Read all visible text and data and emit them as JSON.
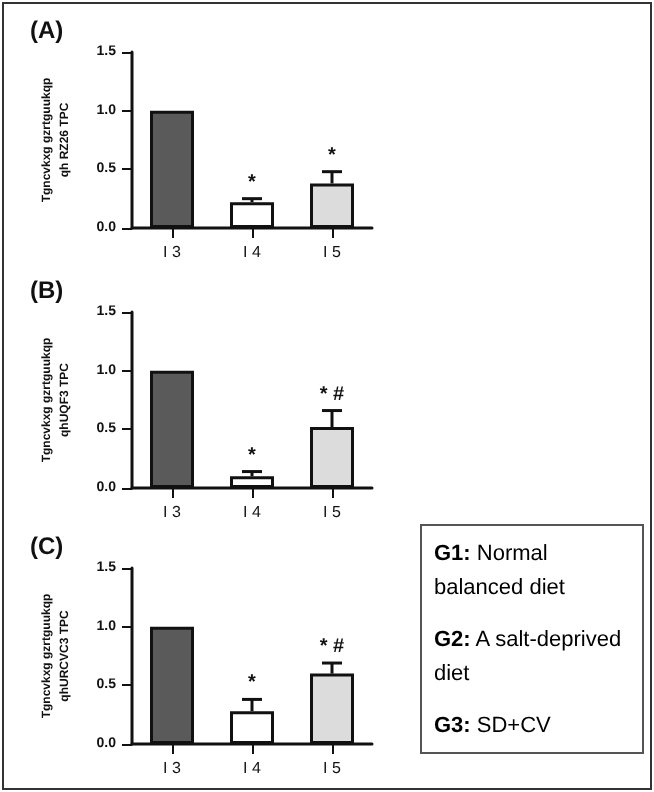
{
  "chart_data": [
    {
      "type": "bar",
      "title": "(A)",
      "ylabel": "Tgncvkxg gzrtguukqp qh RZ26 TPC",
      "categories": [
        "I 3",
        "I 4",
        "I 5"
      ],
      "values": [
        1.0,
        0.22,
        0.38
      ],
      "colors": [
        "#5a5a5a",
        "#ffffff",
        "#dcdcdc"
      ],
      "errors": [
        null,
        [
          0.22,
          0.25
        ],
        [
          0.38,
          0.48
        ]
      ],
      "ylim": [
        0,
        1.5
      ],
      "yticks": [
        {
          "value": 0,
          "label": "0.0"
        },
        {
          "value": 0.5,
          "label": "0.5"
        },
        {
          "value": 1,
          "label": "1.0"
        },
        {
          "value": 1.5,
          "label": "1.5"
        }
      ],
      "grid": false,
      "annotations": [
        "*",
        "*"
      ]
    },
    {
      "type": "bar",
      "title": "(B)",
      "ylabel": "Tgncvkxg gzrtguukqp qhUQF3 TPC",
      "categories": [
        "I 3",
        "I 4",
        "I 5"
      ],
      "values": [
        1.0,
        0.1,
        0.52
      ],
      "colors": [
        "#5a5a5a",
        "#ffffff",
        "#dcdcdc"
      ],
      "errors": [
        null,
        [
          0.1,
          0.14
        ],
        [
          0.52,
          0.66
        ]
      ],
      "ylim": [
        0,
        1.5
      ],
      "yticks": [
        {
          "value": 0,
          "label": "0.0"
        },
        {
          "value": 0.5,
          "label": "0.5"
        },
        {
          "value": 1,
          "label": "1.0"
        },
        {
          "value": 1.5,
          "label": "1.5"
        }
      ],
      "grid": false,
      "annotations": [
        "*",
        "* #"
      ]
    },
    {
      "type": "bar",
      "title": "(C)",
      "ylabel": "Tgncvkxg gzrtguukqp qhURCVC3 TPC",
      "categories": [
        "I 3",
        "I 4",
        "I 5"
      ],
      "values": [
        1.0,
        0.28,
        0.6
      ],
      "colors": [
        "#5a5a5a",
        "#ffffff",
        "#dcdcdc"
      ],
      "errors": [
        null,
        [
          0.28,
          0.38
        ],
        [
          0.6,
          0.69
        ]
      ],
      "ylim": [
        0,
        1.5
      ],
      "yticks": [
        {
          "value": 0,
          "label": "0.0"
        },
        {
          "value": 0.5,
          "label": "0.5"
        },
        {
          "value": 1,
          "label": "1.0"
        },
        {
          "value": 1.5,
          "label": "1.5"
        }
      ],
      "grid": false,
      "annotations": [
        "*",
        "* #"
      ]
    },
    {
      "type": "other",
      "annotations": [
        "G1: Normal balanced diet",
        "G2: A salt-deprived diet",
        "G3: SD+CV"
      ]
    }
  ]
}
